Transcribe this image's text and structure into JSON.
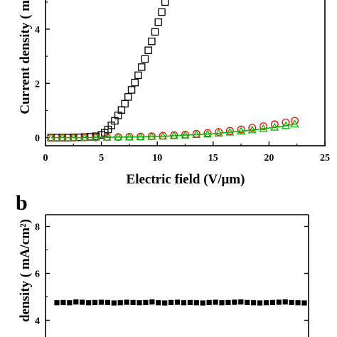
{
  "chart_data": [
    {
      "panel_label": "",
      "type": "scatter",
      "xlabel": "Electric field (V/μm)",
      "ylabel": "Current density ( m",
      "xlim": [
        0,
        25
      ],
      "ylim": [
        -0.3,
        5.6
      ],
      "xticks": [
        0,
        5,
        10,
        15,
        20,
        25
      ],
      "yticks": [
        0,
        2,
        4
      ],
      "grid": false,
      "series": [
        {
          "marker": "open-square",
          "color": "#000000",
          "x": [
            0.5,
            1.0,
            1.5,
            2.0,
            2.5,
            3.0,
            3.5,
            4.0,
            4.5,
            5.0,
            5.3,
            5.6,
            5.9,
            6.2,
            6.5,
            6.8,
            7.1,
            7.4,
            7.7,
            8.0,
            8.3,
            8.6,
            8.9,
            9.2,
            9.5,
            9.8,
            10.1,
            10.4,
            10.7,
            11.0
          ],
          "y": [
            0.0,
            0.0,
            0.0,
            0.0,
            0.01,
            0.01,
            0.02,
            0.03,
            0.05,
            0.1,
            0.18,
            0.3,
            0.45,
            0.62,
            0.82,
            1.02,
            1.25,
            1.5,
            1.76,
            2.03,
            2.3,
            2.6,
            2.9,
            3.22,
            3.55,
            3.9,
            4.26,
            4.63,
            5.0,
            5.35
          ]
        },
        {
          "marker": "open-circle",
          "color": "#ff0000",
          "x": [
            0.5,
            1.5,
            2.5,
            3.5,
            4.5,
            5.5,
            6.5,
            7.5,
            8.5,
            9.5,
            10.5,
            11.5,
            12.5,
            13.5,
            14.5,
            15.5,
            16.5,
            17.5,
            18.5,
            19.5,
            20.5,
            21.5,
            22.3
          ],
          "y": [
            0.0,
            0.0,
            0.0,
            0.01,
            0.01,
            0.02,
            0.02,
            0.03,
            0.04,
            0.05,
            0.07,
            0.09,
            0.11,
            0.14,
            0.17,
            0.21,
            0.25,
            0.3,
            0.36,
            0.42,
            0.49,
            0.56,
            0.62
          ]
        },
        {
          "marker": "open-triangle",
          "color": "#00bb00",
          "x": [
            0.5,
            1.5,
            2.5,
            3.5,
            4.5,
            5.5,
            6.5,
            7.5,
            8.5,
            9.5,
            10.5,
            11.5,
            12.5,
            13.5,
            14.5,
            15.5,
            16.5,
            17.5,
            18.5,
            19.5,
            20.5,
            21.5,
            22.3
          ],
          "y": [
            0.0,
            0.0,
            0.0,
            0.0,
            0.01,
            0.01,
            0.02,
            0.02,
            0.03,
            0.04,
            0.05,
            0.07,
            0.09,
            0.11,
            0.13,
            0.16,
            0.2,
            0.24,
            0.28,
            0.33,
            0.38,
            0.44,
            0.5
          ]
        }
      ]
    },
    {
      "panel_label": "b",
      "type": "scatter",
      "xlabel": "",
      "ylabel": "density ( mA/cm²)",
      "ylim": [
        2.5,
        8.5
      ],
      "yticks": [
        4,
        6,
        8
      ],
      "grid": false,
      "series": [
        {
          "marker": "filled-square",
          "color": "#000000",
          "y": [
            4.75,
            4.76,
            4.75,
            4.78,
            4.77,
            4.75,
            4.76,
            4.77,
            4.76,
            4.74,
            4.75,
            4.77,
            4.76,
            4.75,
            4.76,
            4.78,
            4.75,
            4.74,
            4.76,
            4.77,
            4.75,
            4.76,
            4.75,
            4.74,
            4.76,
            4.77,
            4.75,
            4.76,
            4.77,
            4.78,
            4.76,
            4.75,
            4.74,
            4.75,
            4.76,
            4.77,
            4.78,
            4.76,
            4.75,
            4.74
          ]
        }
      ]
    }
  ]
}
